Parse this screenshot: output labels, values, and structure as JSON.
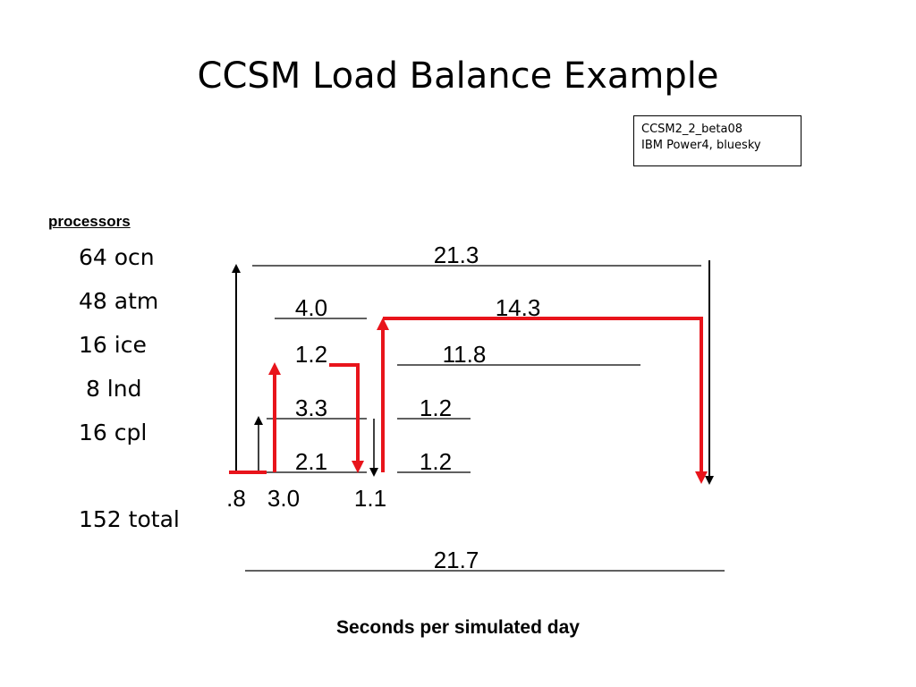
{
  "title": "CCSM Load Balance Example",
  "info_box": [
    "CCSM2_2_beta08",
    "IBM Power4, bluesky"
  ],
  "processors": {
    "heading": "processors",
    "items": [
      "64 ocn",
      "48 atm",
      "16 ice",
      " 8 lnd",
      "16 cpl"
    ],
    "total": "152 total"
  },
  "timings": {
    "ocn_top": "21.3",
    "atm": "4.0",
    "ocn_mid": "14.3",
    "ice": "1.2",
    "ice_span": "11.8",
    "lnd": "3.3",
    "lnd_span": "1.2",
    "cpl": "2.1",
    "cpl_span": "1.2",
    "left_a": ".8",
    "left_b": "3.0",
    "left_c": "1.1",
    "bottom": "21.7"
  },
  "footer": "Seconds per simulated day",
  "colors": {
    "accent": "#e8141b",
    "ink": "#000000"
  }
}
